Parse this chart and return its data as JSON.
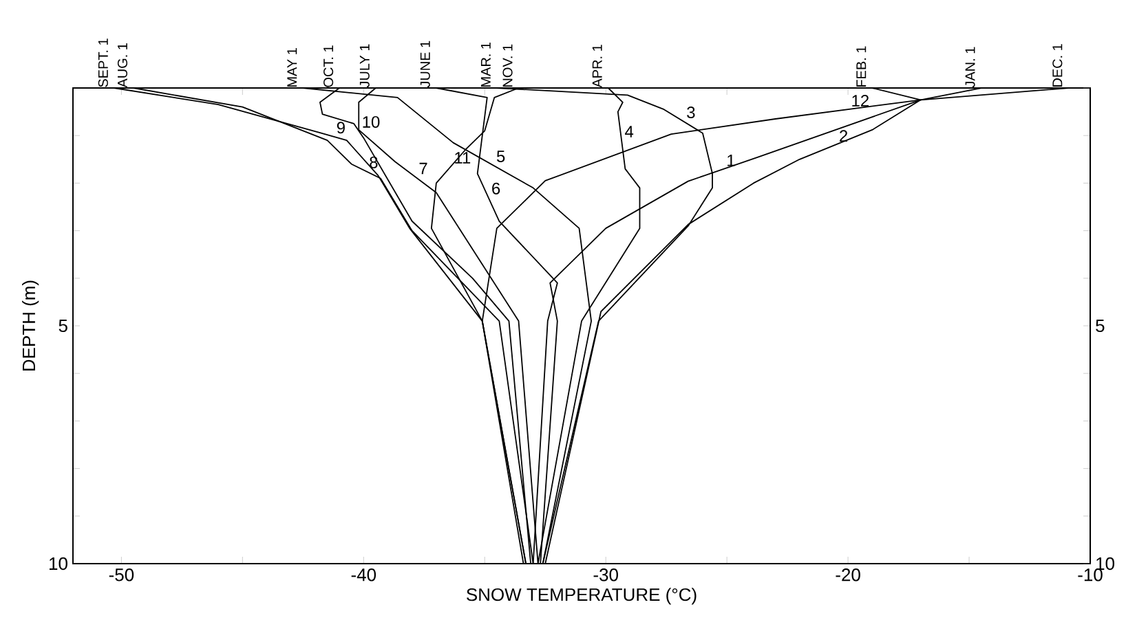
{
  "chart_data": {
    "type": "line",
    "xlabel": "SNOW TEMPERATURE (°C)",
    "ylabel": "DEPTH (m)",
    "xlim": [
      -52,
      -10
    ],
    "ylim": [
      10,
      0
    ],
    "xticks": [
      -50,
      {
        "value": -45,
        "label": null
      },
      -40,
      {
        "value": -35,
        "label": null
      },
      -30,
      {
        "value": -25,
        "label": null
      },
      -20,
      {
        "value": -15,
        "label": null
      },
      -10
    ],
    "yticks": [
      {
        "value": 0,
        "label": null
      },
      {
        "value": 1,
        "label": null
      },
      {
        "value": 2,
        "label": null
      },
      {
        "value": 3,
        "label": null
      },
      {
        "value": 4,
        "label": null
      },
      5,
      {
        "value": 6,
        "label": null
      },
      {
        "value": 7,
        "label": null
      },
      {
        "value": 8,
        "label": null
      },
      {
        "value": 9,
        "label": null
      },
      10
    ],
    "y2lim": [
      10,
      0
    ],
    "y2ticks": [
      {
        "value": 0,
        "label": null
      },
      {
        "value": 1,
        "label": null
      },
      {
        "value": 2,
        "label": null
      },
      {
        "value": 3,
        "label": null
      },
      {
        "value": 4,
        "label": null
      },
      5,
      {
        "value": 6,
        "label": null
      },
      {
        "value": 7,
        "label": null
      },
      {
        "value": 8,
        "label": null
      },
      {
        "value": 9,
        "label": null
      },
      10
    ],
    "annotations": [
      {
        "text": "SEPT. 1",
        "x": -50.3,
        "y": 0
      },
      {
        "text": "AUG. 1",
        "x": -49.5,
        "y": 0
      },
      {
        "text": "MAY 1",
        "x": -42.5,
        "y": 0
      },
      {
        "text": "OCT. 1",
        "x": -41.0,
        "y": 0
      },
      {
        "text": "JULY 1",
        "x": -39.5,
        "y": 0
      },
      {
        "text": "JUNE 1",
        "x": -37.0,
        "y": 0
      },
      {
        "text": "MAR. 1",
        "x": -34.5,
        "y": 0
      },
      {
        "text": "NOV. 1",
        "x": -33.6,
        "y": 0
      },
      {
        "text": "APR. 1",
        "x": -29.9,
        "y": 0
      },
      {
        "text": "FEB. 1",
        "x": -19.0,
        "y": 0
      },
      {
        "text": "JAN. 1",
        "x": -14.5,
        "y": 0
      },
      {
        "text": "DEC. 1",
        "x": -10.9,
        "y": 0
      }
    ],
    "series": [
      {
        "name": "1",
        "color": "#000000",
        "x": [
          -14.5,
          -17.0,
          -23.7,
          -26.6,
          -30.0,
          -32.3,
          -32.0,
          -32.7
        ],
        "values": [
          0,
          0.25,
          1.45,
          1.96,
          2.95,
          4.1,
          4.9,
          10
        ]
      },
      {
        "name": "2",
        "color": "#000000",
        "x": [
          -19.0,
          -17.0,
          -19.0,
          -22.0,
          -23.9,
          -26.6,
          -30.2,
          -32.5
        ],
        "values": [
          0,
          0.25,
          0.88,
          1.5,
          2.0,
          2.87,
          4.7,
          10
        ]
      },
      {
        "name": "3",
        "color": "#000000",
        "x": [
          -34.5,
          -29.1,
          -27.6,
          -26.0,
          -25.6,
          -25.6,
          -26.6,
          -30.3,
          -32.6
        ],
        "values": [
          0,
          0.15,
          0.45,
          0.95,
          1.8,
          2.1,
          2.9,
          4.9,
          10
        ]
      },
      {
        "name": "4",
        "color": "#000000",
        "x": [
          -29.9,
          -29.3,
          -29.5,
          -29.2,
          -28.6,
          -28.6,
          -31.0,
          -32.8
        ],
        "values": [
          0,
          0.3,
          0.5,
          1.7,
          2.1,
          2.95,
          4.9,
          10
        ]
      },
      {
        "name": "5",
        "color": "#000000",
        "x": [
          -42.5,
          -38.6,
          -36.3,
          -33.0,
          -31.1,
          -30.6,
          -32.6
        ],
        "values": [
          0,
          0.2,
          1.15,
          2.1,
          2.95,
          4.9,
          10
        ]
      },
      {
        "name": "6",
        "color": "#000000",
        "x": [
          -37.0,
          -34.9,
          -35.3,
          -34.4,
          -32.0,
          -32.4,
          -33.0
        ],
        "values": [
          0,
          0.2,
          1.8,
          2.8,
          4.1,
          4.9,
          10
        ]
      },
      {
        "name": "7",
        "color": "#000000",
        "x": [
          -39.5,
          -40.2,
          -40.2,
          -38.7,
          -37.0,
          -33.6,
          -32.8
        ],
        "values": [
          0,
          0.3,
          0.88,
          1.55,
          2.2,
          4.9,
          10
        ]
      },
      {
        "name": "8",
        "color": "#000000",
        "x": [
          -49.5,
          -45.0,
          -41.5,
          -40.5,
          -39.3,
          -38.0,
          -34.4,
          -33.0
        ],
        "values": [
          0,
          0.4,
          1.1,
          1.6,
          1.9,
          3.0,
          4.9,
          10
        ]
      },
      {
        "name": "9",
        "color": "#000000",
        "x": [
          -50.3,
          -46.0,
          -41.8,
          -40.7,
          -39.4,
          -38.1,
          -35.1,
          -33.3
        ],
        "values": [
          0,
          0.35,
          0.94,
          1.1,
          1.84,
          2.95,
          4.9,
          10
        ]
      },
      {
        "name": "10",
        "color": "#000000",
        "x": [
          -41.0,
          -41.8,
          -41.7,
          -40.4,
          -40.0,
          -38.0,
          -35.5,
          -34.0,
          -33.1
        ],
        "values": [
          0,
          0.3,
          0.55,
          0.75,
          1.05,
          2.8,
          4.0,
          4.9,
          10
        ]
      },
      {
        "name": "11",
        "color": "#000000",
        "x": [
          -33.6,
          -34.6,
          -35.0,
          -35.8,
          -37.0,
          -37.2,
          -35.1,
          -33.3
        ],
        "values": [
          0,
          0.2,
          0.9,
          1.3,
          2.0,
          2.95,
          4.9,
          10
        ]
      },
      {
        "name": "12",
        "color": "#000000",
        "x": [
          -10.9,
          -17.0,
          -23.0,
          -27.3,
          -32.5,
          -34.5,
          -35.1,
          -33.4
        ],
        "values": [
          0,
          0.25,
          0.65,
          0.97,
          1.95,
          2.95,
          4.9,
          10
        ]
      }
    ]
  }
}
